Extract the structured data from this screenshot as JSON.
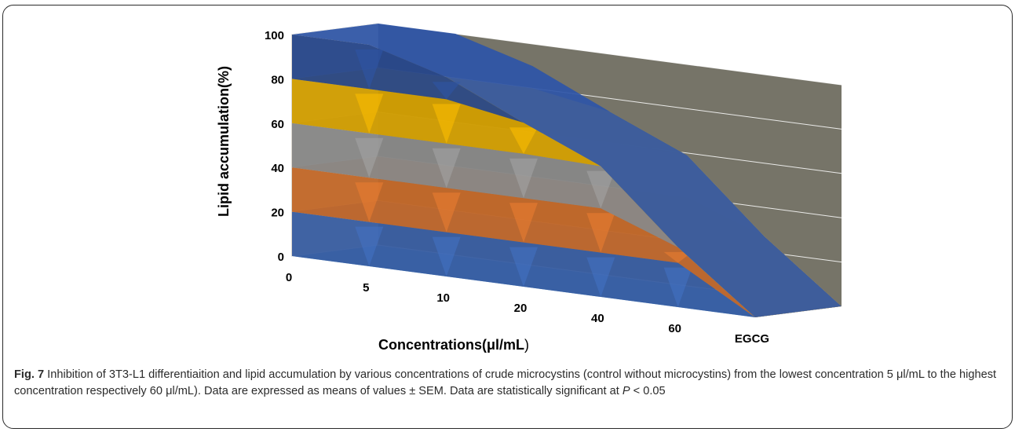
{
  "chart_data": {
    "type": "area",
    "variant": "3d-stacked-area",
    "categories": [
      "0",
      "5",
      "10",
      "20",
      "40",
      "60",
      "EGCG"
    ],
    "ylabel": "Lipid accumulation(%)",
    "xlabel": "Concentrations(μl/mL",
    "xlabel_paren": ")",
    "yticks": [
      "100",
      "80",
      "60",
      "40",
      "20",
      "0"
    ],
    "ylim": [
      0,
      100
    ],
    "values": [
      100,
      100,
      90,
      74,
      59,
      27,
      0
    ],
    "band_colors": [
      "#4472C4",
      "#ED7D31",
      "#A5A5A5",
      "#FFC000",
      "#2E55A8"
    ],
    "back_wall_color": "#767468",
    "side_wall_color": "#D6D0BE",
    "floor_color": "#5B9BD5"
  },
  "caption": {
    "fig_label": "Fig. 7",
    "text": " Inhibition of 3T3-L1 differentiaition and lipid accumulation by various concentrations of crude microcystins (control without microcystins) from the lowest concentration 5 μl/mL to the highest concentration respectively 60 μl/mL). Data are expressed as means of values ± SEM. Data are statistically significant at ",
    "p_symbol": "P",
    "p_rest": " < 0.05"
  }
}
